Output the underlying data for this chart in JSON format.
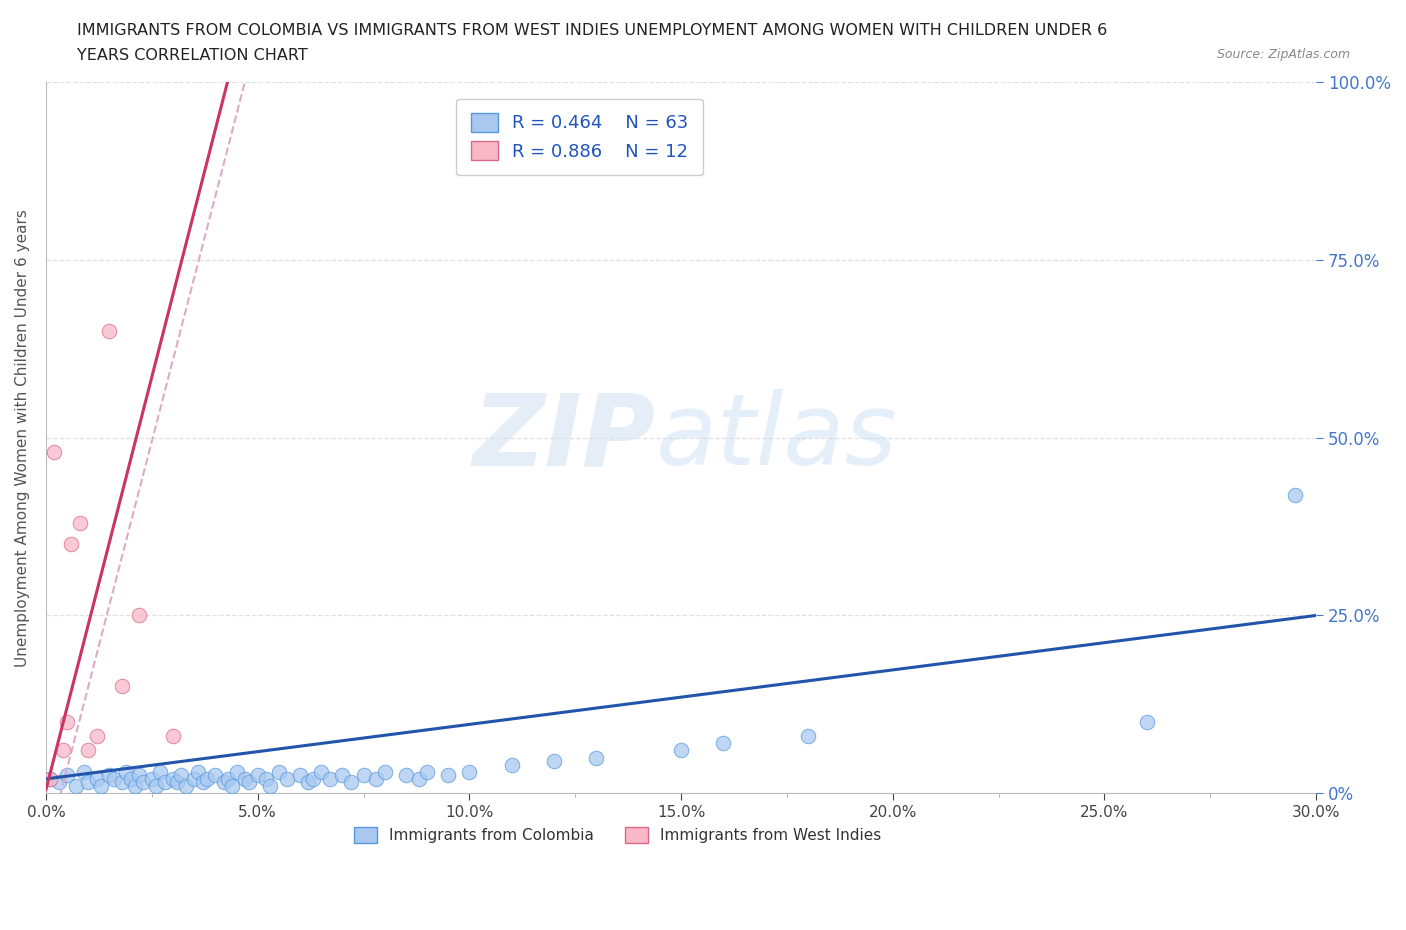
{
  "title_line1": "IMMIGRANTS FROM COLOMBIA VS IMMIGRANTS FROM WEST INDIES UNEMPLOYMENT AMONG WOMEN WITH CHILDREN UNDER 6",
  "title_line2": "YEARS CORRELATION CHART",
  "source_text": "Source: ZipAtlas.com",
  "ylabel": "Unemployment Among Women with Children Under 6 years",
  "xlim": [
    0.0,
    0.3
  ],
  "ylim": [
    0.0,
    1.0
  ],
  "xtick_labels": [
    "0.0%",
    "",
    "5.0%",
    "",
    "10.0%",
    "",
    "15.0%",
    "",
    "20.0%",
    "",
    "25.0%",
    "",
    "30.0%"
  ],
  "xtick_vals": [
    0.0,
    0.025,
    0.05,
    0.075,
    0.1,
    0.125,
    0.15,
    0.175,
    0.2,
    0.225,
    0.25,
    0.275,
    0.3
  ],
  "ytick_vals": [
    0.0,
    0.25,
    0.5,
    0.75,
    1.0
  ],
  "ytick_labels_left": [
    "",
    "",
    "",
    "",
    ""
  ],
  "ytick_labels_right": [
    "0%",
    "25.0%",
    "50.0%",
    "75.0%",
    "100.0%"
  ],
  "colombia_color": "#a8c8f0",
  "colombia_edge": "#5599dd",
  "westindies_color": "#f8b8c8",
  "westindies_edge": "#dd6688",
  "trend_colombia_color": "#2255aa",
  "trend_westindies_color": "#cc3366",
  "trend_westindies_dashed_color": "#ddaacc",
  "R_colombia": 0.464,
  "N_colombia": 63,
  "R_westindies": 0.886,
  "N_westindies": 12,
  "legend_label_colombia": "Immigrants from Colombia",
  "legend_label_westindies": "Immigrants from West Indies",
  "watermark_zip": "ZIP",
  "watermark_atlas": "atlas",
  "background_color": "#ffffff",
  "grid_color": "#dddddd",
  "colombia_x": [
    0.001,
    0.003,
    0.005,
    0.007,
    0.009,
    0.01,
    0.012,
    0.013,
    0.015,
    0.016,
    0.018,
    0.019,
    0.02,
    0.021,
    0.022,
    0.023,
    0.025,
    0.026,
    0.027,
    0.028,
    0.03,
    0.031,
    0.032,
    0.033,
    0.035,
    0.036,
    0.037,
    0.038,
    0.04,
    0.042,
    0.043,
    0.044,
    0.045,
    0.047,
    0.048,
    0.05,
    0.052,
    0.053,
    0.055,
    0.057,
    0.06,
    0.062,
    0.063,
    0.065,
    0.067,
    0.07,
    0.072,
    0.075,
    0.078,
    0.08,
    0.085,
    0.088,
    0.09,
    0.095,
    0.1,
    0.11,
    0.12,
    0.13,
    0.15,
    0.16,
    0.18,
    0.26,
    0.295
  ],
  "colombia_y": [
    0.02,
    0.015,
    0.025,
    0.01,
    0.03,
    0.015,
    0.02,
    0.01,
    0.025,
    0.02,
    0.015,
    0.03,
    0.02,
    0.01,
    0.025,
    0.015,
    0.02,
    0.01,
    0.03,
    0.015,
    0.02,
    0.015,
    0.025,
    0.01,
    0.02,
    0.03,
    0.015,
    0.02,
    0.025,
    0.015,
    0.02,
    0.01,
    0.03,
    0.02,
    0.015,
    0.025,
    0.02,
    0.01,
    0.03,
    0.02,
    0.025,
    0.015,
    0.02,
    0.03,
    0.02,
    0.025,
    0.015,
    0.025,
    0.02,
    0.03,
    0.025,
    0.02,
    0.03,
    0.025,
    0.03,
    0.04,
    0.045,
    0.05,
    0.06,
    0.07,
    0.08,
    0.1,
    0.42
  ],
  "westindies_x": [
    0.001,
    0.002,
    0.004,
    0.005,
    0.006,
    0.008,
    0.01,
    0.012,
    0.015,
    0.018,
    0.022,
    0.03
  ],
  "westindies_y": [
    0.02,
    0.48,
    0.06,
    0.1,
    0.35,
    0.38,
    0.06,
    0.08,
    0.65,
    0.15,
    0.25,
    0.08
  ],
  "wi_trend_x_start": 0.0,
  "wi_trend_x_end": 0.045,
  "wi_trend_dashed_x_start": 0.0,
  "wi_trend_dashed_x_end": 0.06
}
